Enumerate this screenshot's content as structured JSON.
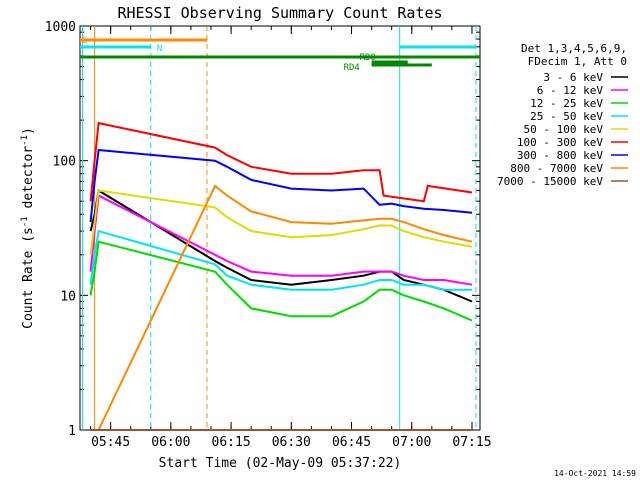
{
  "chart_data": {
    "type": "line",
    "title": "RHESSI Observing Summary Count Rates",
    "xlabel": "Start Time (02-May-09 05:37:22)",
    "ylabel_parts": [
      "Count Rate (s",
      "-1",
      " detector",
      "-1",
      ")"
    ],
    "yscale": "log",
    "ylim": [
      1,
      1000
    ],
    "xlim": [
      "05:37:22",
      "07:17:00"
    ],
    "y_ticks": [
      {
        "value": 1,
        "label": "1"
      },
      {
        "value": 10,
        "label": "10"
      },
      {
        "value": 100,
        "label": "100"
      },
      {
        "value": 1000,
        "label": "1000"
      }
    ],
    "x_ticks": [
      {
        "value": "05:45",
        "label": "05:45"
      },
      {
        "value": "06:00",
        "label": "06:00"
      },
      {
        "value": "06:15",
        "label": "06:15"
      },
      {
        "value": "06:30",
        "label": "06:30"
      },
      {
        "value": "06:45",
        "label": "06:45"
      },
      {
        "value": "07:00",
        "label": "07:00"
      },
      {
        "value": "07:15",
        "label": "07:15"
      }
    ],
    "legend_header": [
      "Det 1,3,4,5,6,9,",
      "FDecim 1, Att 0"
    ],
    "legend_placement": "right",
    "series": [
      {
        "name": "3 - 6 keV",
        "color": "#000000",
        "x": [
          "05:40",
          "05:41",
          "05:42",
          "06:11",
          "06:14",
          "06:20",
          "06:30",
          "06:40",
          "06:48",
          "06:52",
          "06:55",
          "06:58",
          "07:03",
          "07:08",
          "07:15"
        ],
        "y": [
          30,
          40,
          60,
          18,
          16,
          13,
          12,
          13,
          14,
          15,
          15,
          13,
          12,
          11,
          9
        ]
      },
      {
        "name": "6 - 12 keV",
        "color": "#ff00ff",
        "x": [
          "05:40",
          "05:41",
          "05:42",
          "06:11",
          "06:14",
          "06:20",
          "06:30",
          "06:40",
          "06:48",
          "06:52",
          "06:55",
          "06:58",
          "07:03",
          "07:08",
          "07:15"
        ],
        "y": [
          15,
          30,
          55,
          20,
          18,
          15,
          14,
          14,
          15,
          15,
          15,
          14,
          13,
          13,
          12
        ]
      },
      {
        "name": "12 - 25 keV",
        "color": "#00dd00",
        "x": [
          "05:40",
          "05:41",
          "05:42",
          "06:11",
          "06:14",
          "06:20",
          "06:30",
          "06:40",
          "06:48",
          "06:52",
          "06:55",
          "06:58",
          "07:03",
          "07:08",
          "07:15"
        ],
        "y": [
          10,
          15,
          25,
          15,
          12,
          8,
          7,
          7,
          9,
          11,
          11,
          10,
          9,
          8,
          6.5
        ]
      },
      {
        "name": "25 - 50 keV",
        "color": "#00e5ee",
        "x": [
          "05:40",
          "05:41",
          "05:42",
          "06:11",
          "06:14",
          "06:20",
          "06:30",
          "06:40",
          "06:48",
          "06:52",
          "06:55",
          "06:58",
          "07:03",
          "07:08",
          "07:15"
        ],
        "y": [
          12,
          20,
          30,
          17,
          14,
          12,
          11,
          11,
          12,
          13,
          13,
          12,
          12,
          11,
          11
        ]
      },
      {
        "name": "50 - 100 keV",
        "color": "#dddd00",
        "x": [
          "05:40",
          "05:41",
          "05:42",
          "06:11",
          "06:14",
          "06:20",
          "06:30",
          "06:40",
          "06:48",
          "06:52",
          "06:55",
          "06:58",
          "07:03",
          "07:08",
          "07:15"
        ],
        "y": [
          20,
          35,
          60,
          45,
          38,
          30,
          27,
          28,
          31,
          33,
          33,
          30,
          27,
          25,
          23
        ]
      },
      {
        "name": "100 - 300 keV",
        "color": "#ff0000",
        "x": [
          "05:40",
          "05:41",
          "05:42",
          "06:11",
          "06:14",
          "06:20",
          "06:30",
          "06:40",
          "06:48",
          "06:52",
          "06:53",
          "07:03",
          "07:04",
          "07:15"
        ],
        "y": [
          50,
          100,
          190,
          125,
          110,
          90,
          80,
          80,
          85,
          85,
          55,
          50,
          65,
          58
        ]
      },
      {
        "name": "300 - 800 keV",
        "color": "#0000ff",
        "x": [
          "05:40",
          "05:41",
          "05:42",
          "06:11",
          "06:14",
          "06:20",
          "06:30",
          "06:40",
          "06:48",
          "06:52",
          "06:55",
          "06:58",
          "07:03",
          "07:08",
          "07:15"
        ],
        "y": [
          35,
          70,
          120,
          100,
          90,
          72,
          62,
          60,
          62,
          47,
          48,
          46,
          44,
          43,
          41
        ]
      },
      {
        "name": "800 - 7000 keV",
        "color": "#ff8800",
        "x": [
          "05:40",
          "05:41",
          "05:42",
          "06:11",
          "06:14",
          "06:20",
          "06:30",
          "06:40",
          "06:48",
          "06:52",
          "06:55",
          "06:58",
          "07:03",
          "07:08",
          "07:15"
        ],
        "y": [
          1,
          1,
          1,
          65,
          55,
          42,
          35,
          34,
          36,
          37,
          37,
          35,
          31,
          28,
          25
        ]
      },
      {
        "name": "7000 - 15000 keV",
        "color": "#a0522d",
        "x": [
          "05:40",
          "05:41",
          "05:42",
          "06:11",
          "06:14",
          "06:20",
          "06:30",
          "06:40",
          "06:48",
          "06:52",
          "06:55",
          "06:58",
          "07:03",
          "07:08",
          "07:15"
        ],
        "y": [
          1,
          1,
          1,
          1,
          1,
          1,
          1,
          1,
          1,
          1,
          1,
          1,
          1,
          1,
          1
        ]
      }
    ],
    "flag_bars": [
      {
        "label": "S",
        "color": "#ff8800",
        "start": "05:37:22",
        "end": "06:09",
        "label_at": "start"
      },
      {
        "label": "N",
        "color": "#00e5ee",
        "start": "05:37:22",
        "end": "05:55",
        "label_at": "end"
      },
      {
        "label": "",
        "color": "#008800",
        "start": "05:37:22",
        "end": "07:17:00",
        "label_at": "none"
      },
      {
        "label": "RD0",
        "color": "#008800",
        "start": "06:50",
        "end": "06:59",
        "label_at": "above"
      },
      {
        "label": "RD4",
        "color": "#008800",
        "start": "06:50",
        "end": "07:05",
        "label_at": "below"
      },
      {
        "label": "",
        "color": "#00e5ee",
        "start": "06:57",
        "end": "07:16",
        "label_at": "none"
      }
    ],
    "vertical_markers": [
      {
        "time": "05:38",
        "color": "#00e5ee",
        "style": "solid"
      },
      {
        "time": "05:41",
        "color": "#ff8800",
        "style": "solid"
      },
      {
        "time": "05:55",
        "color": "#00e5ee",
        "style": "dashed"
      },
      {
        "time": "06:09",
        "color": "#ff8800",
        "style": "dashed"
      },
      {
        "time": "06:57",
        "color": "#00e5ee",
        "style": "solid"
      },
      {
        "time": "07:16",
        "color": "#00e5ee",
        "style": "dashed"
      }
    ],
    "grid": false
  },
  "footer_date": "14-Oct-2021 14:59"
}
